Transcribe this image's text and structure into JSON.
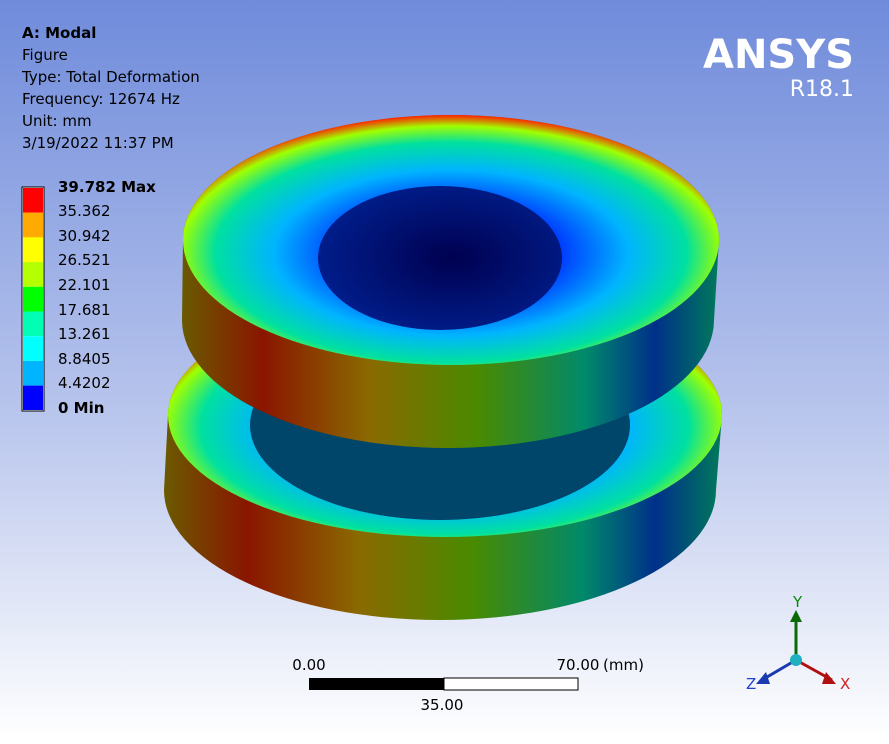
{
  "header": {
    "lines": [
      "A: Modal",
      "Figure",
      "Type: Total Deformation",
      "Frequency: 12674 Hz",
      "Unit: mm",
      "3/19/2022 11:37 PM"
    ]
  },
  "legend": {
    "labels": [
      "39.782 Max",
      "35.362",
      "30.942",
      "26.521",
      "22.101",
      "17.681",
      "13.261",
      "8.8405",
      "4.4202",
      "0 Min"
    ]
  },
  "logo": {
    "name": "ANSYS",
    "version": "R18.1"
  },
  "scale_bar": {
    "start": "0.00",
    "end": "70.00",
    "unit": "(mm)",
    "middle": "35.00"
  },
  "triad": {
    "y": "Y",
    "z": "Z",
    "x": "X"
  }
}
